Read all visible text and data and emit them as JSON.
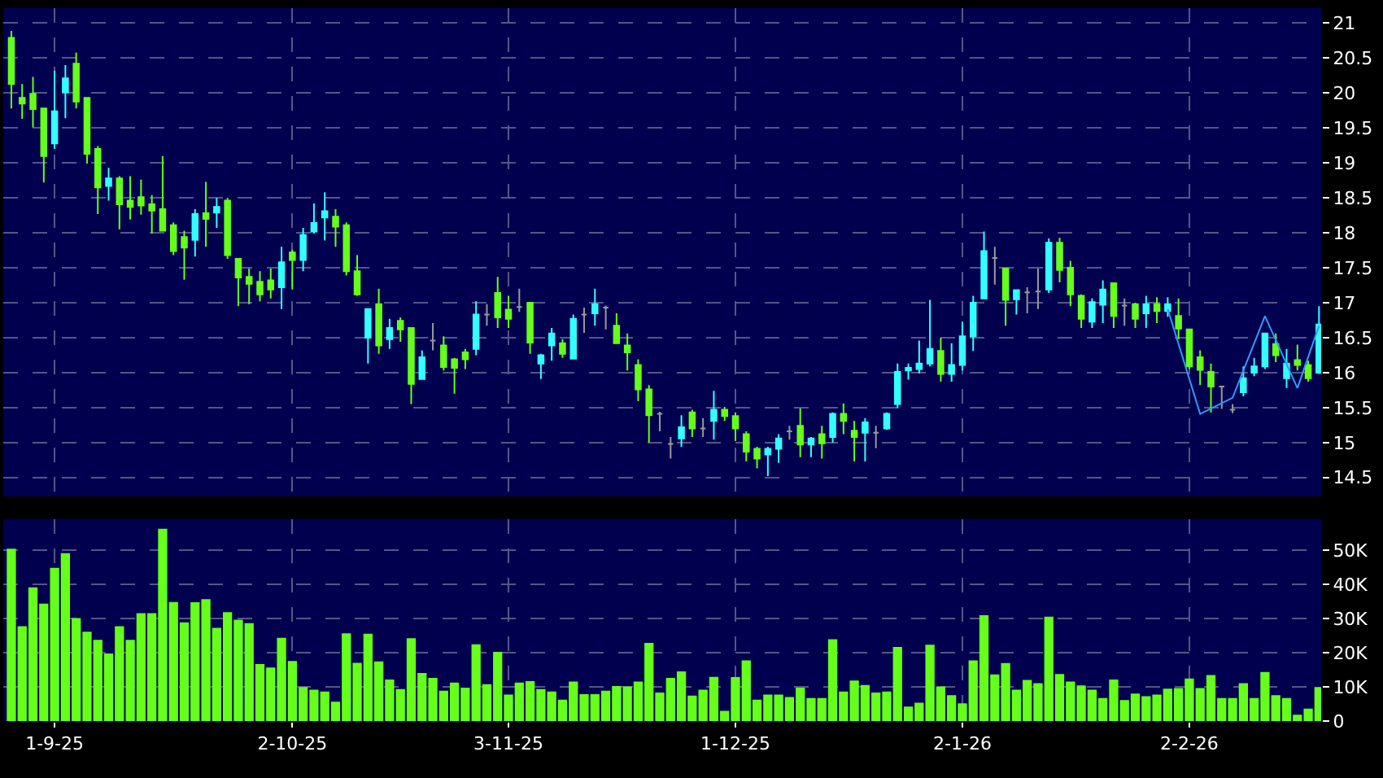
{
  "chart_data": [
    {
      "type": "candlestick",
      "tick_labels": "y",
      "grid": true,
      "ylim": [
        14.23,
        21.22
      ],
      "yticks": [
        14.5,
        15,
        15.5,
        16,
        16.5,
        17,
        17.5,
        18,
        18.5,
        19,
        19.5,
        20,
        20.5,
        21
      ],
      "categories": [
        null,
        null,
        null,
        null,
        null,
        null,
        null,
        null,
        null,
        null,
        null,
        null,
        null,
        null,
        null,
        null,
        null,
        null,
        null,
        null,
        null,
        null,
        null,
        null,
        null,
        null,
        null,
        null,
        null,
        null,
        null,
        null,
        null,
        null,
        null,
        null,
        null,
        null,
        null,
        null,
        null,
        null,
        null,
        null,
        null,
        null,
        null,
        null,
        null,
        null,
        null,
        null,
        null,
        null,
        null,
        null,
        null,
        null,
        null,
        null,
        null,
        null,
        null,
        null,
        null,
        null,
        null,
        null,
        null,
        null,
        null,
        null,
        null,
        null,
        null,
        null,
        null,
        null,
        null,
        null,
        null,
        null,
        null,
        null,
        null,
        null,
        null,
        null,
        null,
        null,
        null,
        null,
        null,
        null,
        null,
        null,
        null,
        null,
        null,
        null,
        null,
        null,
        null,
        null,
        null,
        null,
        null,
        null,
        null,
        null,
        null,
        null,
        null,
        null,
        null,
        null,
        null,
        null,
        null,
        null,
        null,
        null
      ],
      "ohlc": [
        [
          20.79,
          20.89,
          19.78,
          20.13
        ],
        [
          19.93,
          20.13,
          19.63,
          19.85
        ],
        [
          19.99,
          20.23,
          19.51,
          19.77
        ],
        [
          19.78,
          19.79,
          18.72,
          19.1
        ],
        [
          19.28,
          20.32,
          19.2,
          19.74
        ],
        [
          20.01,
          20.4,
          19.64,
          20.21
        ],
        [
          20.42,
          20.58,
          19.78,
          19.88
        ],
        [
          19.93,
          19.93,
          18.99,
          19.13
        ],
        [
          19.2,
          19.24,
          18.27,
          18.65
        ],
        [
          18.67,
          18.93,
          18.46,
          18.78
        ],
        [
          18.78,
          18.81,
          18.05,
          18.41
        ],
        [
          18.46,
          18.81,
          18.19,
          18.37
        ],
        [
          18.51,
          18.76,
          18.26,
          18.39
        ],
        [
          18.41,
          18.54,
          17.99,
          18.32
        ],
        [
          18.34,
          19.1,
          18.03,
          18.03
        ],
        [
          18.11,
          18.15,
          17.68,
          17.74
        ],
        [
          17.94,
          18.03,
          17.33,
          17.79
        ],
        [
          17.9,
          18.34,
          17.66,
          18.27
        ],
        [
          18.28,
          18.73,
          17.8,
          18.2
        ],
        [
          18.29,
          18.5,
          18.07,
          18.37
        ],
        [
          18.46,
          18.5,
          17.63,
          17.68
        ],
        [
          17.63,
          17.64,
          16.95,
          17.36
        ],
        [
          17.37,
          17.49,
          16.98,
          17.27
        ],
        [
          17.3,
          17.45,
          17.02,
          17.12
        ],
        [
          17.32,
          17.49,
          17.06,
          17.19
        ],
        [
          17.22,
          17.8,
          16.91,
          17.58
        ],
        [
          17.72,
          17.76,
          17.19,
          17.61
        ],
        [
          17.61,
          18.07,
          17.45,
          17.97
        ],
        [
          18.02,
          18.42,
          17.99,
          18.14
        ],
        [
          18.22,
          18.58,
          17.89,
          18.31
        ],
        [
          18.23,
          18.34,
          17.8,
          18.09
        ],
        [
          18.11,
          18.15,
          17.39,
          17.45
        ],
        [
          17.45,
          17.68,
          17.1,
          17.12
        ],
        [
          16.5,
          16.91,
          16.13,
          16.91
        ],
        [
          16.98,
          17.2,
          16.27,
          16.39
        ],
        [
          16.48,
          16.77,
          16.34,
          16.64
        ],
        [
          16.74,
          16.79,
          16.44,
          16.62
        ],
        [
          16.64,
          16.64,
          15.55,
          15.84
        ],
        [
          15.91,
          16.32,
          15.9,
          16.22
        ],
        [
          16.46,
          16.71,
          16.32,
          16.46
        ],
        [
          16.39,
          16.52,
          16.03,
          16.08
        ],
        [
          16.19,
          16.21,
          15.7,
          16.07
        ],
        [
          16.29,
          16.34,
          16.05,
          16.19
        ],
        [
          16.34,
          17.02,
          16.25,
          16.83
        ],
        [
          16.83,
          16.98,
          16.67,
          16.83
        ],
        [
          17.14,
          17.37,
          16.64,
          16.79
        ],
        [
          16.9,
          17.1,
          16.64,
          16.77
        ],
        [
          16.94,
          17.2,
          16.87,
          16.94
        ],
        [
          17.0,
          17.0,
          16.27,
          16.43
        ],
        [
          16.13,
          16.27,
          15.91,
          16.25
        ],
        [
          16.39,
          16.64,
          16.17,
          16.56
        ],
        [
          16.42,
          16.48,
          16.21,
          16.27
        ],
        [
          16.2,
          16.83,
          16.2,
          16.77
        ],
        [
          16.83,
          16.93,
          16.57,
          16.83
        ],
        [
          16.85,
          17.2,
          16.67,
          16.98
        ],
        [
          16.93,
          16.96,
          16.62,
          16.93
        ],
        [
          16.67,
          16.85,
          16.42,
          16.42
        ],
        [
          16.39,
          16.56,
          16.03,
          16.29
        ],
        [
          16.11,
          16.19,
          15.59,
          15.76
        ],
        [
          15.76,
          15.82,
          15.0,
          15.39
        ],
        [
          15.41,
          15.44,
          15.16,
          15.41
        ],
        [
          14.98,
          15.08,
          14.77,
          14.98
        ],
        [
          15.06,
          15.39,
          14.94,
          15.22
        ],
        [
          15.43,
          15.47,
          15.08,
          15.2
        ],
        [
          15.2,
          15.35,
          15.08,
          15.2
        ],
        [
          15.31,
          15.74,
          15.04,
          15.47
        ],
        [
          15.47,
          15.51,
          15.31,
          15.38
        ],
        [
          15.38,
          15.43,
          15.02,
          15.2
        ],
        [
          15.12,
          15.16,
          14.73,
          14.87
        ],
        [
          14.91,
          14.94,
          14.63,
          14.77
        ],
        [
          14.83,
          14.94,
          14.52,
          14.91
        ],
        [
          14.91,
          15.12,
          14.71,
          15.06
        ],
        [
          15.16,
          15.24,
          15.04,
          15.16
        ],
        [
          15.24,
          15.49,
          14.79,
          14.97
        ],
        [
          14.97,
          15.08,
          14.79,
          15.06
        ],
        [
          15.12,
          15.24,
          14.77,
          14.99
        ],
        [
          15.08,
          15.43,
          15.0,
          15.41
        ],
        [
          15.41,
          15.56,
          15.12,
          15.31
        ],
        [
          15.17,
          15.31,
          14.73,
          15.08
        ],
        [
          15.14,
          15.35,
          14.73,
          15.29
        ],
        [
          15.14,
          15.24,
          14.92,
          15.14
        ],
        [
          15.2,
          15.43,
          15.18,
          15.41
        ],
        [
          15.55,
          16.13,
          15.49,
          16.01
        ],
        [
          16.03,
          16.13,
          15.9,
          16.07
        ],
        [
          16.05,
          16.46,
          15.99,
          16.13
        ],
        [
          16.13,
          17.04,
          16.09,
          16.34
        ],
        [
          16.31,
          16.5,
          15.87,
          15.98
        ],
        [
          15.98,
          16.42,
          15.87,
          16.11
        ],
        [
          16.11,
          16.73,
          16.03,
          16.52
        ],
        [
          16.52,
          17.1,
          16.31,
          17.0
        ],
        [
          17.06,
          18.02,
          17.06,
          17.74
        ],
        [
          17.64,
          17.8,
          17.26,
          17.64
        ],
        [
          17.49,
          17.5,
          16.67,
          17.04
        ],
        [
          17.05,
          17.19,
          16.83,
          17.18
        ],
        [
          17.15,
          17.22,
          16.85,
          17.15
        ],
        [
          17.16,
          17.49,
          16.91,
          17.16
        ],
        [
          17.19,
          17.92,
          17.14,
          17.86
        ],
        [
          17.86,
          17.93,
          17.29,
          17.47
        ],
        [
          17.5,
          17.6,
          16.95,
          17.12
        ],
        [
          17.1,
          17.12,
          16.64,
          16.77
        ],
        [
          16.73,
          17.06,
          16.64,
          17.01
        ],
        [
          16.97,
          17.32,
          16.71,
          17.19
        ],
        [
          17.28,
          17.29,
          16.64,
          16.81
        ],
        [
          16.96,
          17.06,
          16.67,
          16.96
        ],
        [
          16.98,
          17.0,
          16.64,
          16.77
        ],
        [
          16.85,
          17.1,
          16.64,
          16.98
        ],
        [
          16.98,
          17.08,
          16.71,
          16.88
        ],
        [
          16.88,
          17.08,
          16.8,
          16.98
        ],
        [
          16.81,
          17.06,
          16.48,
          16.63
        ],
        [
          16.62,
          16.63,
          16.05,
          16.09
        ],
        [
          16.22,
          16.32,
          15.82,
          16.04
        ],
        [
          16.01,
          16.13,
          15.43,
          15.8
        ],
        [
          15.8,
          15.8,
          15.48,
          15.8
        ],
        [
          15.47,
          15.55,
          15.42,
          15.47
        ],
        [
          15.72,
          16.09,
          15.66,
          15.92
        ],
        [
          16.0,
          16.21,
          15.95,
          16.09
        ],
        [
          16.09,
          16.57,
          16.05,
          16.56
        ],
        [
          16.41,
          16.56,
          16.15,
          16.25
        ],
        [
          15.92,
          16.34,
          15.78,
          16.13
        ],
        [
          16.18,
          16.4,
          16.03,
          16.11
        ],
        [
          16.11,
          16.17,
          15.87,
          15.92
        ],
        [
          16.0,
          16.95,
          15.98,
          16.69
        ]
      ],
      "colors": [
        "#66ff1a",
        "#66ff1a",
        "#66ff1a",
        "#66ff1a",
        "#33ffff",
        "#33ffff",
        "#66ff1a",
        "#66ff1a",
        "#66ff1a",
        "#33ffff",
        "#66ff1a",
        "#66ff1a",
        "#66ff1a",
        "#66ff1a",
        "#66ff1a",
        "#66ff1a",
        "#66ff1a",
        "#33ffff",
        "#66ff1a",
        "#33ffff",
        "#66ff1a",
        "#66ff1a",
        "#66ff1a",
        "#66ff1a",
        "#66ff1a",
        "#33ffff",
        "#66ff1a",
        "#33ffff",
        "#33ffff",
        "#33ffff",
        "#66ff1a",
        "#66ff1a",
        "#66ff1a",
        "#33ffff",
        "#66ff1a",
        "#33ffff",
        "#66ff1a",
        "#66ff1a",
        "#33ffff",
        "#999999",
        "#66ff1a",
        "#66ff1a",
        "#66ff1a",
        "#33ffff",
        "#999999",
        "#66ff1a",
        "#66ff1a",
        "#999999",
        "#66ff1a",
        "#33ffff",
        "#33ffff",
        "#66ff1a",
        "#33ffff",
        "#999999",
        "#33ffff",
        "#999999",
        "#66ff1a",
        "#66ff1a",
        "#66ff1a",
        "#66ff1a",
        "#999999",
        "#999999",
        "#33ffff",
        "#66ff1a",
        "#999999",
        "#33ffff",
        "#66ff1a",
        "#66ff1a",
        "#66ff1a",
        "#66ff1a",
        "#33ffff",
        "#33ffff",
        "#999999",
        "#66ff1a",
        "#33ffff",
        "#66ff1a",
        "#33ffff",
        "#66ff1a",
        "#66ff1a",
        "#33ffff",
        "#999999",
        "#33ffff",
        "#33ffff",
        "#33ffff",
        "#33ffff",
        "#33ffff",
        "#66ff1a",
        "#33ffff",
        "#33ffff",
        "#33ffff",
        "#33ffff",
        "#999999",
        "#66ff1a",
        "#33ffff",
        "#999999",
        "#999999",
        "#33ffff",
        "#66ff1a",
        "#66ff1a",
        "#66ff1a",
        "#33ffff",
        "#33ffff",
        "#66ff1a",
        "#999999",
        "#66ff1a",
        "#33ffff",
        "#66ff1a",
        "#33ffff",
        "#66ff1a",
        "#66ff1a",
        "#66ff1a",
        "#66ff1a",
        "#999999",
        "#999999",
        "#33ffff",
        "#33ffff",
        "#33ffff",
        "#66ff1a",
        "#33ffff",
        "#66ff1a",
        "#66ff1a",
        "#33ffff"
      ],
      "series": [
        {
          "type": "line",
          "color": "#3399ff",
          "values": [
            null,
            null,
            null,
            null,
            null,
            null,
            null,
            null,
            null,
            null,
            null,
            null,
            null,
            null,
            null,
            null,
            null,
            null,
            null,
            null,
            null,
            null,
            null,
            null,
            null,
            null,
            null,
            null,
            null,
            null,
            null,
            null,
            null,
            null,
            null,
            null,
            null,
            null,
            null,
            null,
            null,
            null,
            null,
            null,
            null,
            null,
            null,
            null,
            null,
            null,
            null,
            null,
            null,
            null,
            null,
            null,
            null,
            null,
            null,
            null,
            null,
            null,
            null,
            null,
            null,
            null,
            null,
            null,
            null,
            null,
            null,
            null,
            null,
            null,
            null,
            null,
            null,
            null,
            null,
            null,
            null,
            null,
            null,
            null,
            null,
            null,
            null,
            null,
            null,
            null,
            null,
            null,
            null,
            null,
            null,
            null,
            null,
            null,
            null,
            null,
            null,
            null,
            null,
            null,
            null,
            null,
            null,
            16.91,
            null,
            null,
            15.41,
            null,
            null,
            15.64,
            null,
            null,
            16.81,
            null,
            null,
            15.78,
            null,
            16.67
          ]
        }
      ]
    },
    {
      "type": "bar",
      "categories": [
        null,
        null,
        null,
        null,
        "1-9-25",
        null,
        null,
        null,
        null,
        null,
        null,
        null,
        null,
        null,
        null,
        null,
        null,
        null,
        null,
        null,
        null,
        null,
        null,
        null,
        null,
        null,
        "2-10-25",
        null,
        null,
        null,
        null,
        null,
        null,
        null,
        null,
        null,
        null,
        null,
        null,
        null,
        null,
        null,
        null,
        null,
        null,
        null,
        "3-11-25",
        null,
        null,
        null,
        null,
        null,
        null,
        null,
        null,
        null,
        null,
        null,
        null,
        null,
        null,
        null,
        null,
        null,
        null,
        null,
        null,
        "1-12-25",
        null,
        null,
        null,
        null,
        null,
        null,
        null,
        null,
        null,
        null,
        null,
        null,
        null,
        null,
        null,
        null,
        null,
        null,
        null,
        null,
        "2-1-26",
        null,
        null,
        null,
        null,
        null,
        null,
        null,
        null,
        null,
        null,
        null,
        null,
        null,
        null,
        null,
        null,
        null,
        null,
        null,
        null,
        "2-2-26",
        null,
        null,
        null,
        null,
        null,
        null,
        null,
        null,
        null,
        null,
        null,
        null
      ],
      "color": "#66ff1a",
      "grid": true,
      "values": [
        50.5,
        27.8,
        39.2,
        34.4,
        44.9,
        49.2,
        30.2,
        26.2,
        23.8,
        19.8,
        27.8,
        23.8,
        31.6,
        31.6,
        56.3,
        34.9,
        28.9,
        34.8,
        35.7,
        27.3,
        31.9,
        29.7,
        28.7,
        16.7,
        15.7,
        24.4,
        17.6,
        10,
        9.2,
        8.7,
        5.7,
        25.7,
        17.1,
        25.6,
        17.5,
        12.2,
        9.4,
        24.3,
        14.1,
        12.7,
        8.9,
        11.3,
        9.8,
        22.5,
        10.8,
        20.3,
        7.8,
        11.3,
        11.7,
        9.4,
        8.7,
        6.3,
        11.6,
        7.9,
        7.9,
        8.9,
        10.3,
        10.2,
        11.6,
        22.9,
        8.4,
        12.7,
        14.6,
        7.5,
        9.2,
        13,
        3,
        12.9,
        17.8,
        6.3,
        7.8,
        7.8,
        7.1,
        9.8,
        6.8,
        6.8,
        24,
        8.7,
        11.9,
        10.6,
        8.4,
        8.7,
        21.7,
        4.3,
        5.4,
        22.4,
        10.2,
        7.6,
        5.2,
        17.8,
        31,
        13.7,
        17,
        9.2,
        12.1,
        11.1,
        30.6,
        13.8,
        11.6,
        10.5,
        9.2,
        6.8,
        12.2,
        6.2,
        8.1,
        7.3,
        7.8,
        9.5,
        9.7,
        12.5,
        9.7,
        13.5,
        6.8,
        6.8,
        11.1,
        6.8,
        14.4,
        7.6,
        6.8,
        1.9,
        3.7,
        10
      ],
      "ylim": [
        0,
        59.2
      ],
      "yticks": [
        0,
        {
          "value": 10,
          "label": "10K"
        },
        {
          "value": 20,
          "label": "20K"
        },
        {
          "value": 30,
          "label": "30K"
        },
        {
          "value": 40,
          "label": "40K"
        },
        {
          "value": 50,
          "label": "50K"
        }
      ]
    }
  ]
}
